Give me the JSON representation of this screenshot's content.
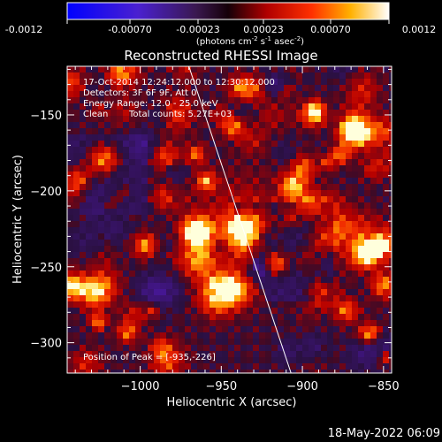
{
  "colorbar": {
    "ticks": [
      "-0.0012",
      "-0.00070",
      "-0.00023",
      "0.00023",
      "0.00070",
      "0.0012"
    ],
    "units_prefix": "(photons cm",
    "units_sup1": "-2",
    "units_mid1": " s",
    "units_sup2": "-1",
    "units_mid2": " asec",
    "units_sup3": "-2",
    "units_suffix": ")"
  },
  "title": "Reconstructed RHESSI Image",
  "annotations": {
    "time_range": "17-Oct-2014 12:24:12.000 to 12:30:12.000",
    "detectors": "Detectors: 3F 6F 9F, Att 0",
    "energy": "Energy Range: 12.0 - 25.0 keV",
    "method": "Clean",
    "counts": "Total counts: 5.27E+03",
    "peak": "Position of Peak = [-935,-226]"
  },
  "axes": {
    "xlabel": "Heliocentric X (arcsec)",
    "ylabel": "Heliocentric Y (arcsec)",
    "xticks": [
      -1000,
      -950,
      -900,
      -850
    ],
    "yticks": [
      -150,
      -200,
      -250,
      -300
    ],
    "xlim": [
      -1045,
      -845
    ],
    "ylim": [
      -320,
      -118
    ]
  },
  "peak_position": [
    -935,
    -226
  ],
  "limb_line": [
    [
      -970,
      -118
    ],
    [
      -907,
      -320
    ]
  ],
  "footer": "18-May-2022 06:09",
  "colors": {
    "background": "#000000",
    "text": "#ffffff",
    "bright_core": "#ffffc8",
    "mid": "#d01010",
    "dark": "#2a1040"
  }
}
